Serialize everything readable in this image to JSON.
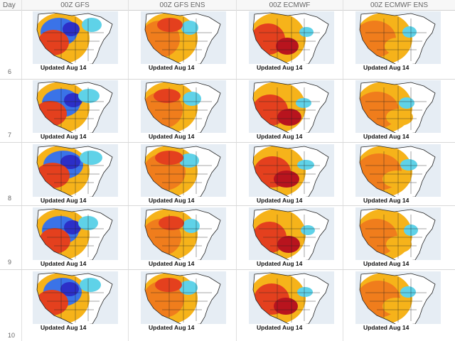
{
  "header": {
    "day_label": "Day",
    "columns": [
      "00Z GFS",
      "00Z GFS  ENS",
      "00Z  ECMWF",
      "00Z  ECMWF  ENS"
    ]
  },
  "rows": [
    {
      "day": "6"
    },
    {
      "day": "7"
    },
    {
      "day": "8"
    },
    {
      "day": "9"
    },
    {
      "day": "10"
    }
  ],
  "caption": "Updated Aug 14",
  "colors": {
    "warm_light": "#f6b31a",
    "warm": "#f07d1c",
    "hot": "#e4401e",
    "very_hot": "#b8141e",
    "cool_light": "#5fd2e8",
    "cool": "#3a73e8",
    "cold": "#2c2fc8",
    "ocean": "#e6edf4",
    "border_lines": "#222222"
  }
}
